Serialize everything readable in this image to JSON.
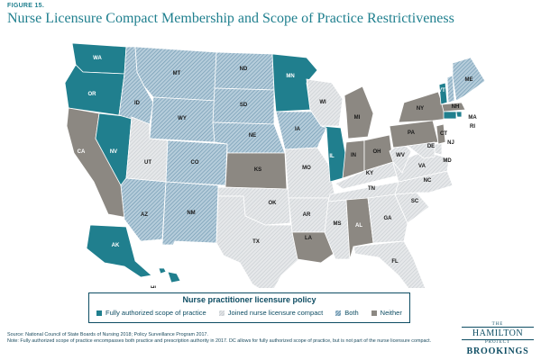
{
  "figure_label": "FIGURE 15.",
  "title": "Nurse Licensure Compact Membership and Scope of Practice Restrictiveness",
  "colors": {
    "full": "#207f8e",
    "neither": "#8c8882",
    "compact": "#e1e4e6",
    "both": "#9bbacd",
    "border": "#ffffff",
    "text_dark": "#1a1a1a",
    "text_light": "#ffffff"
  },
  "legend": {
    "title": "Nurse practitioner licensure policy",
    "items": [
      {
        "key": "full",
        "label": "Fully authorized scope of practice"
      },
      {
        "key": "compact",
        "label": "Joined nurse licensure compact"
      },
      {
        "key": "both",
        "label": "Both"
      },
      {
        "key": "neither",
        "label": "Neither"
      }
    ]
  },
  "states": [
    {
      "abbr": "WA",
      "category": "full"
    },
    {
      "abbr": "OR",
      "category": "full"
    },
    {
      "abbr": "CA",
      "category": "neither"
    },
    {
      "abbr": "NV",
      "category": "full"
    },
    {
      "abbr": "ID",
      "category": "both"
    },
    {
      "abbr": "MT",
      "category": "both"
    },
    {
      "abbr": "WY",
      "category": "both"
    },
    {
      "abbr": "UT",
      "category": "compact"
    },
    {
      "abbr": "AZ",
      "category": "both"
    },
    {
      "abbr": "CO",
      "category": "both"
    },
    {
      "abbr": "NM",
      "category": "both"
    },
    {
      "abbr": "ND",
      "category": "both"
    },
    {
      "abbr": "SD",
      "category": "both"
    },
    {
      "abbr": "NE",
      "category": "both"
    },
    {
      "abbr": "KS",
      "category": "neither"
    },
    {
      "abbr": "OK",
      "category": "compact"
    },
    {
      "abbr": "TX",
      "category": "compact"
    },
    {
      "abbr": "MN",
      "category": "full"
    },
    {
      "abbr": "IA",
      "category": "both"
    },
    {
      "abbr": "MO",
      "category": "compact"
    },
    {
      "abbr": "AR",
      "category": "compact"
    },
    {
      "abbr": "LA",
      "category": "neither"
    },
    {
      "abbr": "WI",
      "category": "compact"
    },
    {
      "abbr": "IL",
      "category": "full"
    },
    {
      "abbr": "MI",
      "category": "neither"
    },
    {
      "abbr": "IN",
      "category": "neither"
    },
    {
      "abbr": "OH",
      "category": "neither"
    },
    {
      "abbr": "KY",
      "category": "compact"
    },
    {
      "abbr": "TN",
      "category": "compact"
    },
    {
      "abbr": "MS",
      "category": "compact"
    },
    {
      "abbr": "AL",
      "category": "neither"
    },
    {
      "abbr": "GA",
      "category": "compact"
    },
    {
      "abbr": "FL",
      "category": "compact"
    },
    {
      "abbr": "SC",
      "category": "compact"
    },
    {
      "abbr": "NC",
      "category": "compact"
    },
    {
      "abbr": "VA",
      "category": "compact"
    },
    {
      "abbr": "WV",
      "category": "compact"
    },
    {
      "abbr": "PA",
      "category": "neither"
    },
    {
      "abbr": "NY",
      "category": "neither"
    },
    {
      "abbr": "VT",
      "category": "full"
    },
    {
      "abbr": "NH",
      "category": "both"
    },
    {
      "abbr": "ME",
      "category": "both"
    },
    {
      "abbr": "MA",
      "category": "neither"
    },
    {
      "abbr": "RI",
      "category": "full"
    },
    {
      "abbr": "CT",
      "category": "full"
    },
    {
      "abbr": "NJ",
      "category": "neither"
    },
    {
      "abbr": "DE",
      "category": "compact"
    },
    {
      "abbr": "MD",
      "category": "compact"
    },
    {
      "abbr": "AK",
      "category": "full"
    },
    {
      "abbr": "HI",
      "category": "full"
    }
  ],
  "source": "Source: National Council of State Boards of Nursing 2018; Policy Surveillance Program 2017.",
  "note": "Note: Fully authorized scope of practice encompasses both practice and prescription authority in 2017. DC allows for fully authorized scope of practice, but is not part of the nurse licensure compact.",
  "logo": {
    "the": "THE",
    "hamilton": "HAMILTON",
    "project": "PROJECT",
    "brookings": "BROOKINGS"
  }
}
